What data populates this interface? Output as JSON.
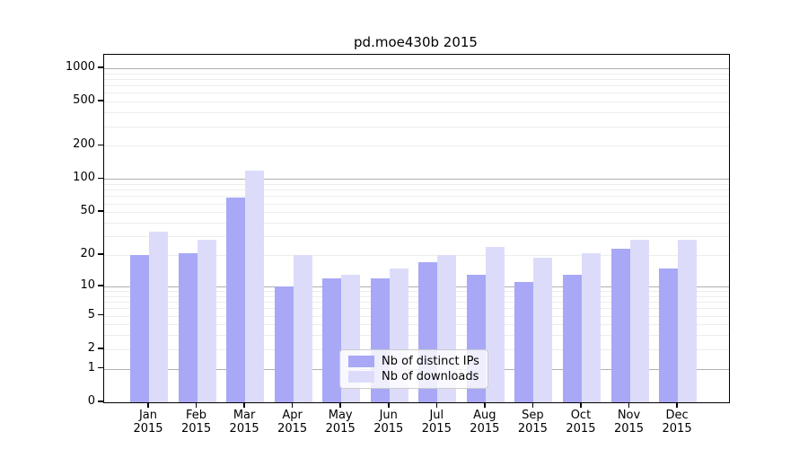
{
  "chart_data": {
    "type": "bar",
    "title": "pd.moe430b 2015",
    "scale": "log1p",
    "grid": true,
    "legend_position": "lower center",
    "categories": [
      {
        "month": "Jan",
        "year": "2015"
      },
      {
        "month": "Feb",
        "year": "2015"
      },
      {
        "month": "Mar",
        "year": "2015"
      },
      {
        "month": "Apr",
        "year": "2015"
      },
      {
        "month": "May",
        "year": "2015"
      },
      {
        "month": "Jun",
        "year": "2015"
      },
      {
        "month": "Jul",
        "year": "2015"
      },
      {
        "month": "Aug",
        "year": "2015"
      },
      {
        "month": "Sep",
        "year": "2015"
      },
      {
        "month": "Oct",
        "year": "2015"
      },
      {
        "month": "Nov",
        "year": "2015"
      },
      {
        "month": "Dec",
        "year": "2015"
      }
    ],
    "series": [
      {
        "name": "Nb of distinct IPs",
        "color_key": "distinct_ips",
        "values": [
          20,
          21,
          68,
          10,
          12,
          12,
          17,
          13,
          11,
          13,
          23,
          15
        ]
      },
      {
        "name": "Nb of downloads",
        "color_key": "downloads",
        "values": [
          33,
          28,
          120,
          20,
          13,
          15,
          20,
          24,
          19,
          21,
          28,
          28
        ]
      }
    ],
    "y_ticks": [
      0,
      1,
      2,
      5,
      10,
      20,
      50,
      100,
      200,
      500,
      1000
    ],
    "ylim": [
      0,
      1320
    ],
    "colors": {
      "distinct_ips": "#a8a8f6",
      "downloads": "#dcdcfa",
      "grid_major": "#b0b0b0",
      "grid_minor": "#ededed",
      "axis": "#000000",
      "legend_border": "#cccccc"
    }
  }
}
